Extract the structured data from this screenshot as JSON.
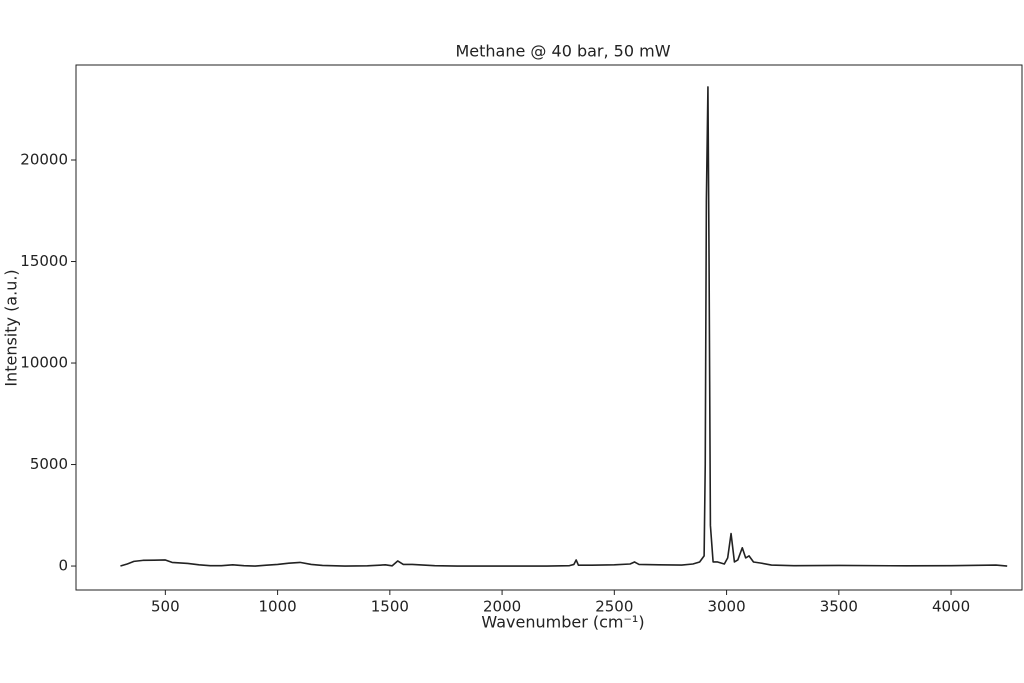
{
  "chart_data": {
    "type": "line",
    "title": "Methane @ 40 bar, 50 mW",
    "x_label": "Wavenumber (cm⁻¹)",
    "y_label": "Intensity (a.u.)",
    "x": [
      300,
      330,
      360,
      400,
      450,
      500,
      530,
      600,
      650,
      700,
      750,
      800,
      850,
      900,
      950,
      1000,
      1050,
      1100,
      1150,
      1200,
      1300,
      1400,
      1480,
      1510,
      1535,
      1560,
      1600,
      1700,
      1800,
      1900,
      2000,
      2100,
      2200,
      2300,
      2320,
      2330,
      2340,
      2400,
      2500,
      2570,
      2590,
      2610,
      2700,
      2800,
      2850,
      2880,
      2900,
      2905,
      2910,
      2917,
      2922,
      2928,
      2940,
      2960,
      2990,
      3005,
      3020,
      3035,
      3050,
      3070,
      3085,
      3100,
      3120,
      3150,
      3200,
      3300,
      3500,
      3800,
      4000,
      4200,
      4250
    ],
    "values": [
      0,
      100,
      230,
      280,
      290,
      300,
      180,
      130,
      60,
      20,
      20,
      60,
      20,
      0,
      40,
      80,
      140,
      180,
      80,
      30,
      0,
      10,
      60,
      10,
      250,
      80,
      80,
      20,
      0,
      0,
      0,
      0,
      0,
      20,
      80,
      300,
      40,
      40,
      60,
      100,
      200,
      80,
      60,
      50,
      100,
      200,
      500,
      5000,
      18000,
      23600,
      15000,
      2000,
      200,
      200,
      100,
      400,
      1600,
      200,
      300,
      900,
      400,
      500,
      200,
      150,
      50,
      20,
      30,
      10,
      20,
      50,
      0
    ],
    "color": "#222222",
    "xlim": [
      102,
      4316
    ],
    "ylim": [
      -1180,
      24680
    ],
    "xticks": [
      500,
      1000,
      1500,
      2000,
      2500,
      3000,
      3500,
      4000
    ],
    "yticks": [
      0,
      5000,
      10000,
      15000,
      20000
    ]
  }
}
